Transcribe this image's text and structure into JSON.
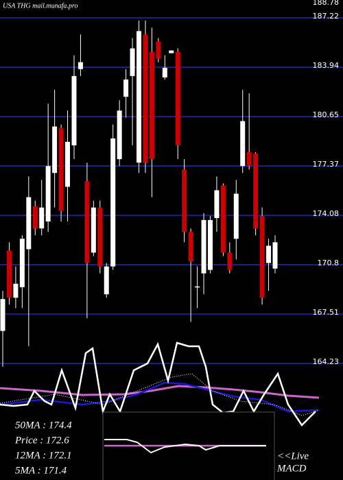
{
  "chart_data": {
    "type": "candlestick",
    "title": "USA THG mail.munafa.pro",
    "open": [
      166.39,
      171.74,
      168.6,
      169.3,
      171.83,
      174.69,
      173.21,
      173.67,
      176.9,
      179.89,
      175.98,
      178.74,
      183.81,
      176.35,
      171.6,
      174.6,
      168.83,
      170.68,
      177.82,
      181.97,
      183.35,
      177.59,
      186.11,
      184.96,
      185.65,
      183.26,
      184.87,
      184.96,
      177.13,
      172.98,
      169.3,
      170.22,
      170.45,
      173.9,
      176.07,
      171.6,
      172.52,
      177.36,
      178.28,
      178.19,
      174.04,
      170.91,
      170.54
    ],
    "high": [
      169.06,
      172.29,
      170.68,
      172.75,
      176.67,
      175.06,
      176.44,
      181.51,
      182.43,
      180.12,
      181.05,
      184.73,
      186.11,
      177.59,
      175.06,
      175.06,
      170.91,
      180.12,
      181.74,
      183.81,
      185.88,
      187.04,
      187.04,
      186.57,
      185.88,
      184.73,
      185.05,
      185.19,
      177.82,
      173.21,
      170.68,
      174.23,
      174.04,
      176.67,
      176.21,
      172.29,
      176.44,
      182.43,
      182.2,
      178.28,
      174.6,
      172.52,
      172.75
    ],
    "low": [
      164.0,
      168.14,
      167.91,
      167.91,
      165.38,
      172.75,
      172.75,
      172.98,
      174.6,
      173.67,
      173.67,
      177.82,
      183.35,
      167.22,
      171.37,
      170.22,
      168.6,
      170.45,
      177.36,
      180.58,
      178.74,
      176.9,
      176.9,
      175.29,
      184.27,
      183.12,
      184.87,
      177.82,
      172.29,
      166.99,
      167.91,
      168.83,
      170.22,
      172.98,
      171.37,
      170.22,
      171.14,
      176.9,
      177.13,
      172.75,
      168.14,
      169.06,
      170.22
    ],
    "close": [
      168.51,
      168.6,
      169.53,
      172.52,
      175.29,
      173.21,
      174.6,
      177.36,
      179.99,
      174.36,
      178.97,
      183.35,
      184.27,
      170.91,
      174.6,
      170.68,
      170.68,
      179.2,
      181.05,
      183.12,
      185.19,
      186.34,
      177.59,
      177.82,
      184.5,
      183.9,
      185.05,
      178.74,
      172.98,
      171.0,
      169.35,
      173.77,
      173.77,
      175.75,
      171.6,
      170.45,
      175.52,
      180.35,
      177.36,
      173.21,
      168.6,
      172.06,
      172.29
    ],
    "up_color": "#ffffff",
    "down_color": "#cc0000",
    "ylim": [
      164,
      188.5
    ],
    "yticks": [
      188.78,
      187.22,
      183.94,
      180.65,
      177.37,
      174.08,
      170.8,
      167.51,
      164.23
    ],
    "grid": true,
    "grid_color": "#1c1c8c",
    "stats": [
      "50MA : 174.4",
      "Price : 172.6",
      "12MA : 172.1",
      "5MA : 171.4"
    ],
    "live_label": "<<Live",
    "indicator_label": "MACD"
  }
}
